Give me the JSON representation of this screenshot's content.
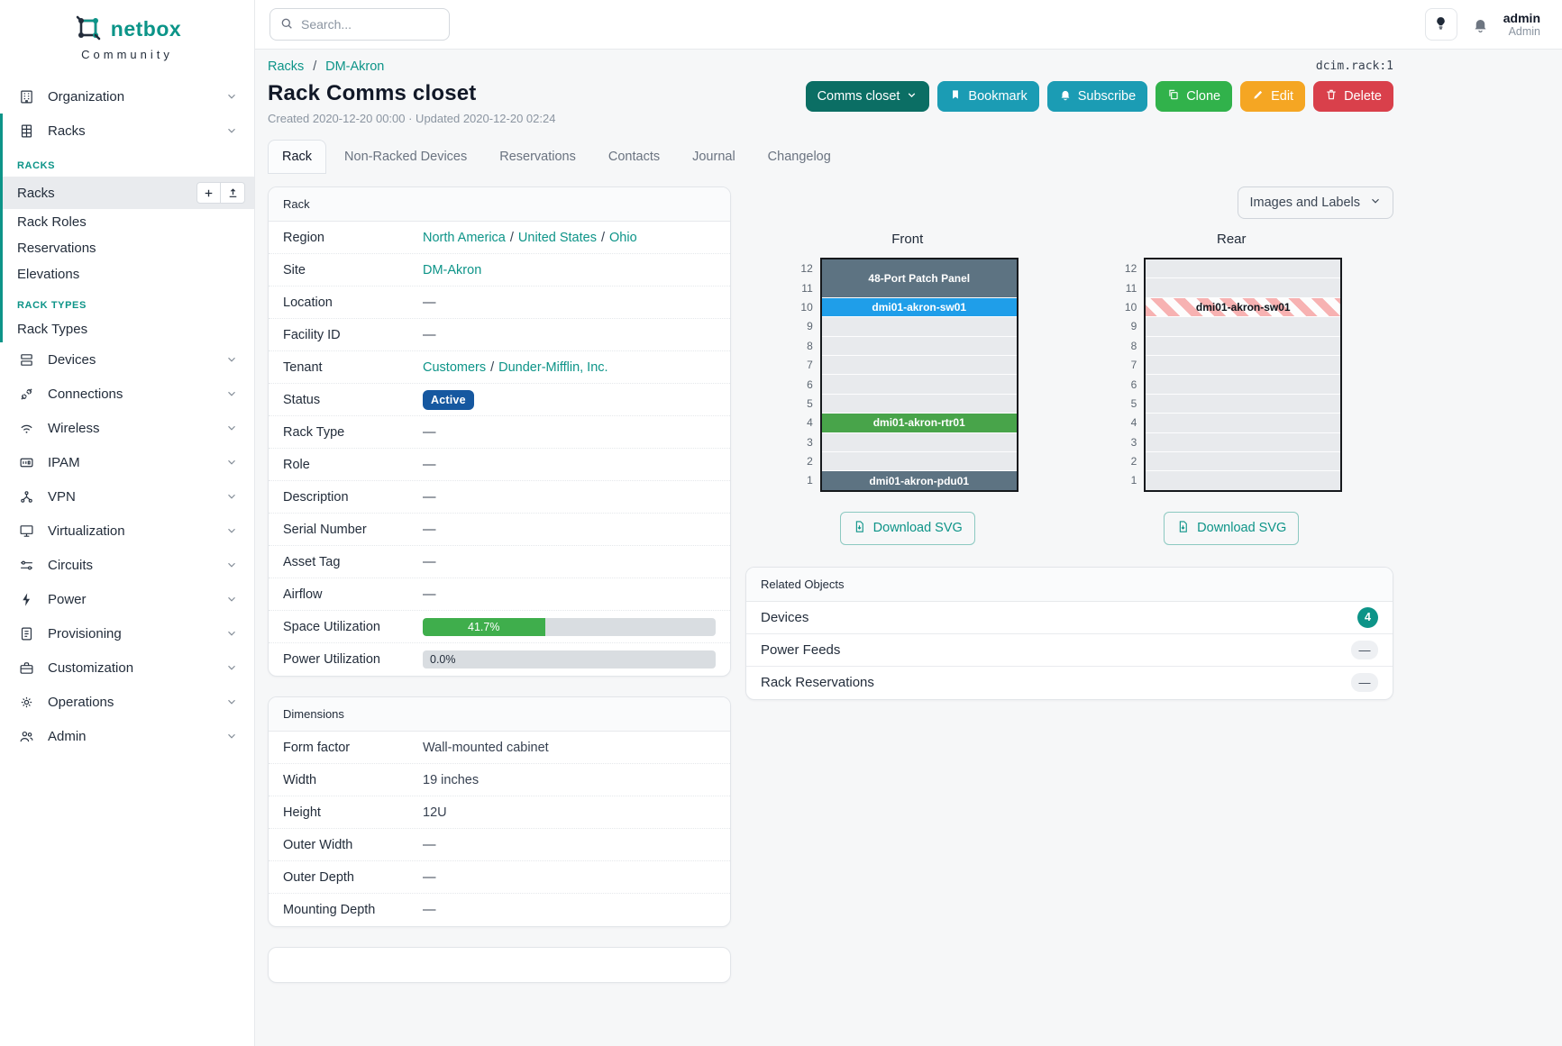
{
  "brand": {
    "name": "netbox",
    "subtitle": "Community"
  },
  "topbar": {
    "search_placeholder": "Search...",
    "user_name": "admin",
    "user_role": "Admin"
  },
  "sidebar": {
    "organization_label": "Organization",
    "racks_label": "Racks",
    "racks_section": "RACKS",
    "racks_items": [
      "Racks",
      "Rack Roles",
      "Reservations",
      "Elevations"
    ],
    "rack_types_section": "RACK TYPES",
    "rack_types_items": [
      "Rack Types"
    ],
    "menu_items": [
      "Devices",
      "Connections",
      "Wireless",
      "IPAM",
      "VPN",
      "Virtualization",
      "Circuits",
      "Power",
      "Provisioning",
      "Customization",
      "Operations",
      "Admin"
    ]
  },
  "page": {
    "breadcrumb": [
      "Racks",
      "DM-Akron"
    ],
    "sep": "/",
    "object_id": "dcim.rack:1",
    "title": "Rack Comms closet",
    "meta": "Created 2020-12-20 00:00 · Updated 2020-12-20 02:24",
    "actions": {
      "rename": "Comms closet",
      "bookmark": "Bookmark",
      "subscribe": "Subscribe",
      "clone": "Clone",
      "edit": "Edit",
      "delete": "Delete"
    }
  },
  "tabs": {
    "items": [
      "Rack",
      "Non-Racked Devices",
      "Reservations",
      "Contacts",
      "Journal",
      "Changelog"
    ],
    "active": "Rack"
  },
  "rack_panel": {
    "title": "Rack",
    "region_label": "Region",
    "region_links": [
      "North America",
      "United States",
      "Ohio"
    ],
    "site_label": "Site",
    "site_value": "DM-Akron",
    "location_label": "Location",
    "location_value": "—",
    "facility_label": "Facility ID",
    "facility_value": "—",
    "tenant_label": "Tenant",
    "tenant_links": [
      "Customers",
      "Dunder-Mifflin, Inc."
    ],
    "status_label": "Status",
    "status_value": "Active",
    "rack_type_label": "Rack Type",
    "rack_type_value": "—",
    "role_label": "Role",
    "role_value": "—",
    "description_label": "Description",
    "description_value": "—",
    "serial_label": "Serial Number",
    "serial_value": "—",
    "asset_label": "Asset Tag",
    "asset_value": "—",
    "airflow_label": "Airflow",
    "airflow_value": "—",
    "space_label": "Space Utilization",
    "space_value": "41.7%",
    "space_pct": 41.7,
    "power_label": "Power Utilization",
    "power_value": "0.0%",
    "power_pct": 0
  },
  "dimensions_panel": {
    "title": "Dimensions",
    "rows": [
      [
        "Form factor",
        "Wall-mounted cabinet"
      ],
      [
        "Width",
        "19 inches"
      ],
      [
        "Height",
        "12U"
      ],
      [
        "Outer Width",
        "—"
      ],
      [
        "Outer Depth",
        "—"
      ],
      [
        "Mounting Depth",
        "—"
      ]
    ]
  },
  "elevation": {
    "toggle_label": "Images and Labels",
    "front_title": "Front",
    "rear_title": "Rear",
    "unit_count": 12,
    "front_devices": [
      {
        "name": "48-Port Patch Panel",
        "top_unit": 12,
        "height": 2,
        "style": "slate"
      },
      {
        "name": "dmi01-akron-sw01",
        "top_unit": 10,
        "height": 1,
        "style": "blue"
      },
      {
        "name": "dmi01-akron-rtr01",
        "top_unit": 4,
        "height": 1,
        "style": "green"
      },
      {
        "name": "dmi01-akron-pdu01",
        "top_unit": 1,
        "height": 1,
        "style": "slate"
      }
    ],
    "rear_devices": [
      {
        "name": "dmi01-akron-sw01",
        "top_unit": 10,
        "height": 1,
        "style": "striped"
      }
    ],
    "download_label": "Download SVG"
  },
  "related_panel": {
    "title": "Related Objects",
    "rows": [
      {
        "label": "Devices",
        "badge": "4",
        "badge_type": "count"
      },
      {
        "label": "Power Feeds",
        "badge": "—",
        "badge_type": "empty"
      },
      {
        "label": "Rack Reservations",
        "badge": "—",
        "badge_type": "empty"
      }
    ]
  },
  "colors": {
    "accent_teal": "#0d9488",
    "status_active": "#1658a0",
    "device_blue": "#1f9ee9",
    "device_green": "#48a44a",
    "device_slate": "#5d7382",
    "stripe_pink": "#f7b2b2",
    "progress_green": "#3fae4c",
    "btn_rename": "#0b6e64",
    "btn_info": "#1b9cb4",
    "btn_clone": "#31b24b",
    "btn_edit": "#f5a623",
    "btn_delete": "#d9404b"
  }
}
